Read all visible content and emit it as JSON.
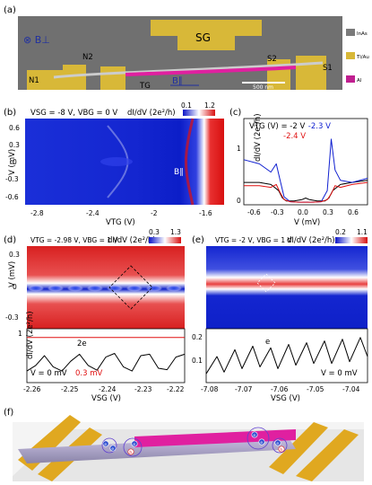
{
  "colors": {
    "gold": "#d8b838",
    "magenta": "#e0208a",
    "sem_bg": "#6d6d6d",
    "blue": "#1020d0",
    "red": "#e01010",
    "white": "#ffffff"
  },
  "panel_a": {
    "label": "(a)",
    "field_label": "⊗ B⊥",
    "b_par_label": "B∥",
    "scalebar": "500 nm",
    "gates": [
      "N1",
      "N2",
      "TG",
      "SG",
      "S2",
      "S1"
    ],
    "legend": [
      {
        "label": "InAs",
        "color": "#7a7a7a"
      },
      {
        "label": "Ti/Au",
        "color": "#d8b838"
      },
      {
        "label": "Al",
        "color": "#c02090"
      }
    ]
  },
  "panel_b": {
    "label": "(b)",
    "title": "VSG = -8 V, VBG = 0 V",
    "cbar_label": "dI/dV (2e²/h)",
    "cbar_min": "0.1",
    "cbar_max": "1.2",
    "xlabel": "VTG (V)",
    "ylabel": "V (mV)",
    "xticks": [
      "-2.8",
      "-2.4",
      "-2",
      "-1.6"
    ],
    "yticks": [
      "0.6",
      "0.3",
      "0",
      "-0.3",
      "-0.6"
    ]
  },
  "panel_c": {
    "label": "(c)",
    "title": "VTG (V) = ",
    "xlabel": "V (mV)",
    "ylabel": "dI/dV (2e²/h)",
    "xticks": [
      "-0.6",
      "-0.3",
      "0.0",
      "0.3",
      "0.6"
    ],
    "yticks": [
      "0",
      "1"
    ]
  },
  "panel_d": {
    "label": "(d)",
    "title": "VTG = -2.98 V, VBG = 1 V",
    "cbar_label": "dI/dV (2e²/h)",
    "cbar_min": "0.3",
    "cbar_max": "1.3",
    "xlabel": "VSG (V)",
    "ylabel_top": "V (mV)",
    "ylabel_bot": "dI/dV (2e²/h)",
    "yticks_top": [
      "0.3",
      "0",
      "-0.3"
    ],
    "yticks_bot": [
      "1"
    ],
    "xticks": [
      "-2.26",
      "-2.25",
      "-2.24",
      "-2.23",
      "-2.22"
    ],
    "period_label": "2e",
    "legend_black": "V = 0 mV",
    "legend_red": "0.3 mV"
  },
  "panel_e": {
    "label": "(e)",
    "title": "VTG = -2 V, VBG = 1 V",
    "cbar_label": "dI/dV (2e²/h)",
    "cbar_min": "0.2",
    "cbar_max": "1.1",
    "xlabel": "VSG (V)",
    "yticks_bot": [
      "0.2",
      "0.1"
    ],
    "xticks": [
      "-7.08",
      "-7.07",
      "-7.06",
      "-7.05",
      "-7.04"
    ],
    "period_label": "e",
    "legend_black": "V = 0 mV"
  },
  "panel_f": {
    "label": "(f)",
    "particles": [
      "e",
      "e",
      "e",
      "h",
      "e",
      "e",
      "e",
      "h"
    ]
  },
  "chart_data": [
    {
      "type": "line",
      "id": "c",
      "xlim": [
        -0.8,
        0.8
      ],
      "ylim": [
        0,
        1.6
      ],
      "series": [
        {
          "name": "-2 V",
          "color": "#000000",
          "x": [
            -0.8,
            -0.6,
            -0.45,
            -0.35,
            -0.3,
            -0.25,
            -0.15,
            -0.05,
            0.0,
            0.05,
            0.15,
            0.25,
            0.3,
            0.35,
            0.45,
            0.6,
            0.8
          ],
          "y": [
            0.5,
            0.5,
            0.45,
            0.3,
            0.12,
            0.05,
            0.05,
            0.08,
            0.12,
            0.08,
            0.05,
            0.05,
            0.12,
            0.3,
            0.45,
            0.5,
            0.55
          ]
        },
        {
          "name": "-2.3 V",
          "color": "#1020d0",
          "x": [
            -0.8,
            -0.6,
            -0.45,
            -0.38,
            -0.33,
            -0.28,
            -0.2,
            -0.1,
            0.0,
            0.1,
            0.2,
            0.28,
            0.33,
            0.38,
            0.45,
            0.6,
            0.8
          ],
          "y": [
            1.05,
            0.95,
            0.75,
            0.95,
            0.55,
            0.15,
            0.03,
            0.02,
            0.02,
            0.02,
            0.03,
            0.3,
            1.55,
            0.8,
            0.55,
            0.5,
            0.6
          ]
        },
        {
          "name": "-2.4 V",
          "color": "#e01010",
          "x": [
            -0.8,
            -0.6,
            -0.45,
            -0.38,
            -0.33,
            -0.28,
            -0.2,
            -0.1,
            0.0,
            0.1,
            0.2,
            0.28,
            0.33,
            0.38,
            0.45,
            0.6,
            0.8
          ],
          "y": [
            0.42,
            0.42,
            0.38,
            0.45,
            0.25,
            0.08,
            0.03,
            0.02,
            0.02,
            0.02,
            0.03,
            0.08,
            0.22,
            0.42,
            0.38,
            0.45,
            0.5
          ]
        }
      ]
    },
    {
      "type": "line",
      "id": "d-linecut",
      "xlim": [
        -2.265,
        -2.22
      ],
      "series": [
        {
          "name": "V = 0 mV",
          "color": "#000000",
          "x": [
            -2.265,
            -2.2625,
            -2.26,
            -2.2575,
            -2.255,
            -2.2525,
            -2.25,
            -2.2475,
            -2.245,
            -2.2425,
            -2.24,
            -2.2375,
            -2.235,
            -2.2325,
            -2.23,
            -2.2275,
            -2.225,
            -2.2225,
            -2.22
          ],
          "y": [
            0.35,
            0.55,
            0.9,
            0.5,
            0.35,
            0.7,
            0.95,
            0.55,
            0.38,
            0.85,
            0.98,
            0.5,
            0.35,
            0.9,
            0.95,
            0.45,
            0.4,
            0.85,
            0.95
          ]
        },
        {
          "name": "0.3 mV",
          "color": "#e01010",
          "x": [
            -2.265,
            -2.22
          ],
          "y": [
            1.55,
            1.55
          ]
        }
      ]
    },
    {
      "type": "line",
      "id": "e-linecut",
      "xlim": [
        -7.082,
        -7.037
      ],
      "series": [
        {
          "name": "V = 0 mV",
          "color": "#000000",
          "x": [
            -7.082,
            -7.079,
            -7.077,
            -7.074,
            -7.072,
            -7.069,
            -7.067,
            -7.064,
            -7.062,
            -7.059,
            -7.057,
            -7.054,
            -7.052,
            -7.049,
            -7.047,
            -7.044,
            -7.042,
            -7.039,
            -7.037
          ],
          "y": [
            0.02,
            0.12,
            0.03,
            0.16,
            0.05,
            0.18,
            0.06,
            0.17,
            0.05,
            0.19,
            0.07,
            0.2,
            0.08,
            0.21,
            0.08,
            0.22,
            0.09,
            0.23,
            0.12
          ]
        }
      ]
    }
  ]
}
